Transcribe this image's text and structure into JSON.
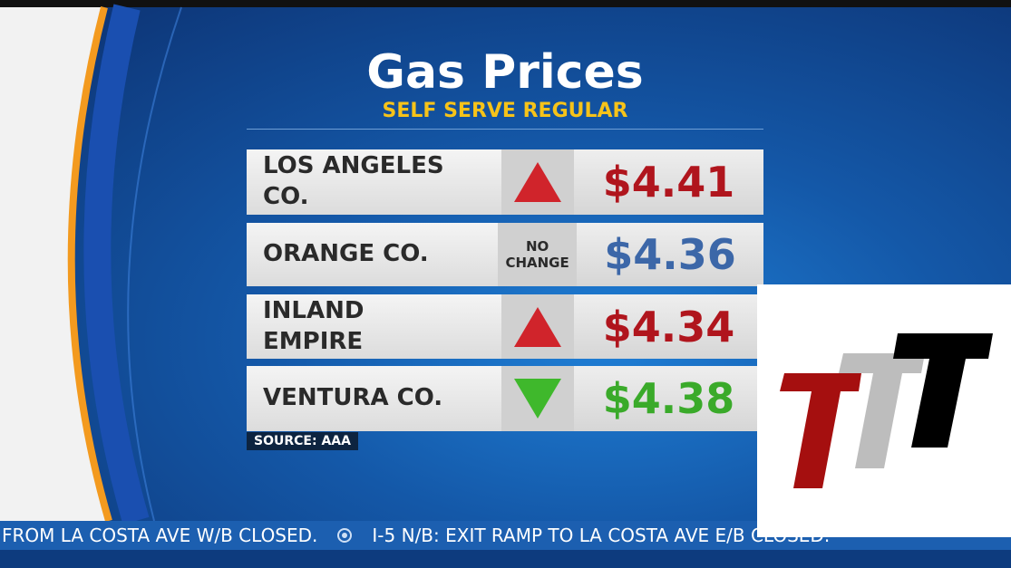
{
  "header": {
    "title": "Gas Prices",
    "subtitle": "SELF SERVE REGULAR"
  },
  "table": {
    "rows": [
      {
        "region": "LOS ANGELES CO.",
        "price": "$4.41"
      },
      {
        "region": "ORANGE CO.",
        "change": "NO CHANGE",
        "price": "$4.36"
      },
      {
        "region": "INLAND EMPIRE",
        "price": "$4.34"
      },
      {
        "region": "VENTURA CO.",
        "price": "$4.38"
      }
    ]
  },
  "source": "SOURCE: AAA",
  "ticker": [
    "FROM LA COSTA AVE W/B CLOSED.",
    "I-5 N/B: EXIT RAMP TO LA COSTA AVE E/B CLOSED."
  ]
}
